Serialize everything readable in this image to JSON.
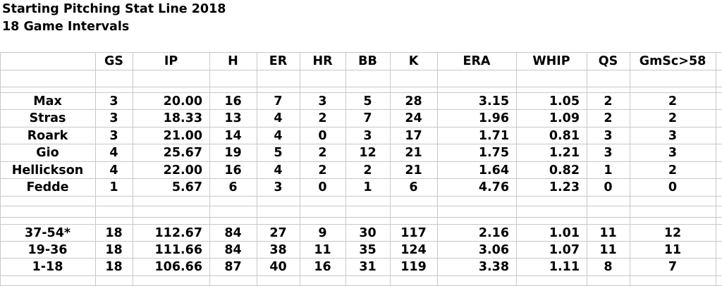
{
  "title": "Starting Pitching Stat Line 2018",
  "subtitle": "18 Game Intervals",
  "columns": [
    "",
    "GS",
    "IP",
    "H",
    "ER",
    "HR",
    "BB",
    "K",
    "ERA",
    "WHIP",
    "QS",
    "GmSc>58"
  ],
  "pitchers": [
    [
      "Max",
      "3",
      "20.00",
      "16",
      "7",
      "3",
      "5",
      "28",
      "3.15",
      "1.05",
      "2",
      "2"
    ],
    [
      "Stras",
      "3",
      "18.33",
      "13",
      "4",
      "2",
      "7",
      "24",
      "1.96",
      "1.09",
      "2",
      "2"
    ],
    [
      "Roark",
      "3",
      "21.00",
      "14",
      "4",
      "0",
      "3",
      "17",
      "1.71",
      "0.81",
      "3",
      "3"
    ],
    [
      "Gio",
      "4",
      "25.67",
      "19",
      "5",
      "2",
      "12",
      "21",
      "1.75",
      "1.21",
      "3",
      "3"
    ],
    [
      "Hellickson",
      "4",
      "22.00",
      "16",
      "4",
      "2",
      "2",
      "21",
      "1.64",
      "0.82",
      "1",
      "2"
    ],
    [
      "Fedde",
      "1",
      "5.67",
      "6",
      "3",
      "0",
      "1",
      "6",
      "4.76",
      "1.23",
      "0",
      "0"
    ]
  ],
  "intervals": [
    [
      "37-54*",
      "18",
      "112.67",
      "84",
      "27",
      "9",
      "30",
      "117",
      "2.16",
      "1.01",
      "11",
      "12"
    ],
    [
      "19-36",
      "18",
      "111.66",
      "84",
      "38",
      "11",
      "35",
      "124",
      "3.06",
      "1.07",
      "11",
      "11"
    ],
    [
      "1-18",
      "18",
      "106.66",
      "87",
      "40",
      "16",
      "31",
      "119",
      "3.38",
      "1.11",
      "8",
      "7"
    ]
  ]
}
